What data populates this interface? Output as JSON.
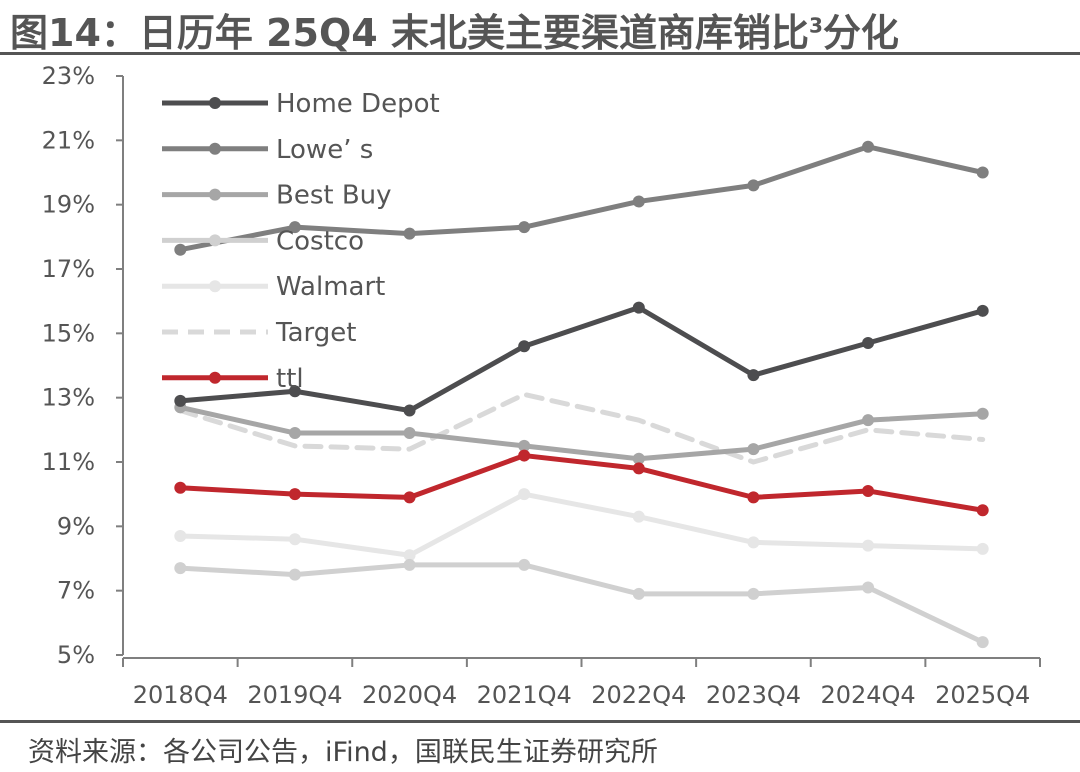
{
  "header": {
    "title": "图14：日历年 25Q4 末北美主要渠道商库销比",
    "title_sup": "3",
    "title_suffix": "分化"
  },
  "footer": {
    "source": "资料来源：各公司公告，iFind，国联民生证券研究所"
  },
  "chart_data": {
    "type": "line",
    "categories": [
      "2018Q4",
      "2019Q4",
      "2020Q4",
      "2021Q4",
      "2022Q4",
      "2023Q4",
      "2024Q4",
      "2025Q4"
    ],
    "y_ticks": [
      "23%",
      "21%",
      "19%",
      "17%",
      "15%",
      "13%",
      "11%",
      "9%",
      "7%",
      "5%"
    ],
    "ylim": [
      5,
      23
    ],
    "y_unit": "%",
    "grid": false,
    "legend_position": "top-left",
    "series": [
      {
        "name": "Home Depot",
        "color": "#4d4d4f",
        "dash": false,
        "values": [
          12.9,
          13.2,
          12.6,
          14.6,
          15.8,
          13.7,
          14.7,
          15.7
        ]
      },
      {
        "name": "Lowe’ s",
        "color": "#7f7f7f",
        "dash": false,
        "values": [
          17.6,
          18.3,
          18.1,
          18.3,
          19.1,
          19.6,
          20.8,
          20.0
        ]
      },
      {
        "name": "Best Buy",
        "color": "#a6a6a6",
        "dash": false,
        "values": [
          12.7,
          11.9,
          11.9,
          11.5,
          11.1,
          11.4,
          12.3,
          12.5
        ]
      },
      {
        "name": "Costco",
        "color": "#d0d0d0",
        "dash": false,
        "values": [
          7.7,
          7.5,
          7.8,
          7.8,
          6.9,
          6.9,
          7.1,
          5.4
        ]
      },
      {
        "name": "Walmart",
        "color": "#e6e6e6",
        "dash": false,
        "values": [
          8.7,
          8.6,
          8.1,
          10.0,
          9.3,
          8.5,
          8.4,
          8.3
        ]
      },
      {
        "name": "Target",
        "color": "#d9d9d9",
        "dash": true,
        "values": [
          12.6,
          11.5,
          11.4,
          13.1,
          12.3,
          11.0,
          12.0,
          11.7
        ]
      },
      {
        "name": "ttl",
        "color": "#c0272d",
        "dash": false,
        "values": [
          10.2,
          10.0,
          9.9,
          11.2,
          10.8,
          9.9,
          10.1,
          9.5
        ]
      }
    ]
  }
}
